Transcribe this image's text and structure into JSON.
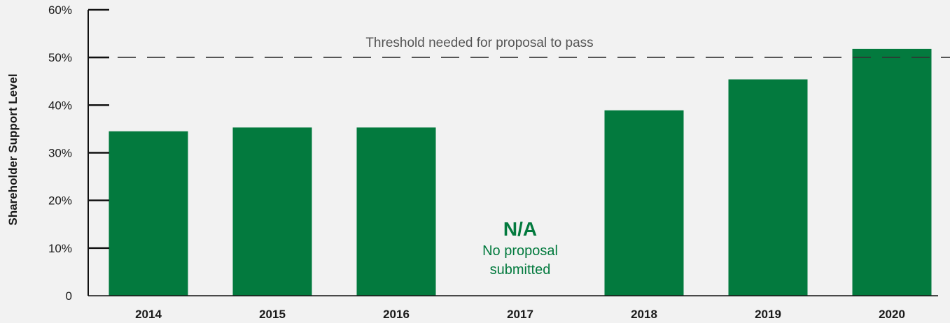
{
  "chart_data": {
    "type": "bar",
    "ylabel": "Shareholder Support Level",
    "xlabel": "",
    "categories": [
      "2014",
      "2015",
      "2016",
      "2017",
      "2018",
      "2019",
      "2020"
    ],
    "values": [
      34.5,
      35.3,
      35.3,
      null,
      38.9,
      45.4,
      51.8
    ],
    "ylim": [
      0,
      60
    ],
    "yticks": [
      {
        "value": 0,
        "label": "0"
      },
      {
        "value": 10,
        "label": "10%"
      },
      {
        "value": 20,
        "label": "20%"
      },
      {
        "value": 30,
        "label": "30%"
      },
      {
        "value": 40,
        "label": "40%"
      },
      {
        "value": 50,
        "label": "50%"
      },
      {
        "value": 60,
        "label": "60%"
      }
    ],
    "threshold": {
      "value": 50,
      "label": "Threshold needed for proposal to pass"
    },
    "na_annotation": {
      "category": "2017",
      "title": "N/A",
      "subtitle_line1": "No proposal",
      "subtitle_line2": "submitted"
    },
    "grid": false,
    "colors": {
      "bar": "#037a3e",
      "axis": "#111111",
      "threshold": "#333333",
      "annotation": "#037a3e"
    }
  }
}
